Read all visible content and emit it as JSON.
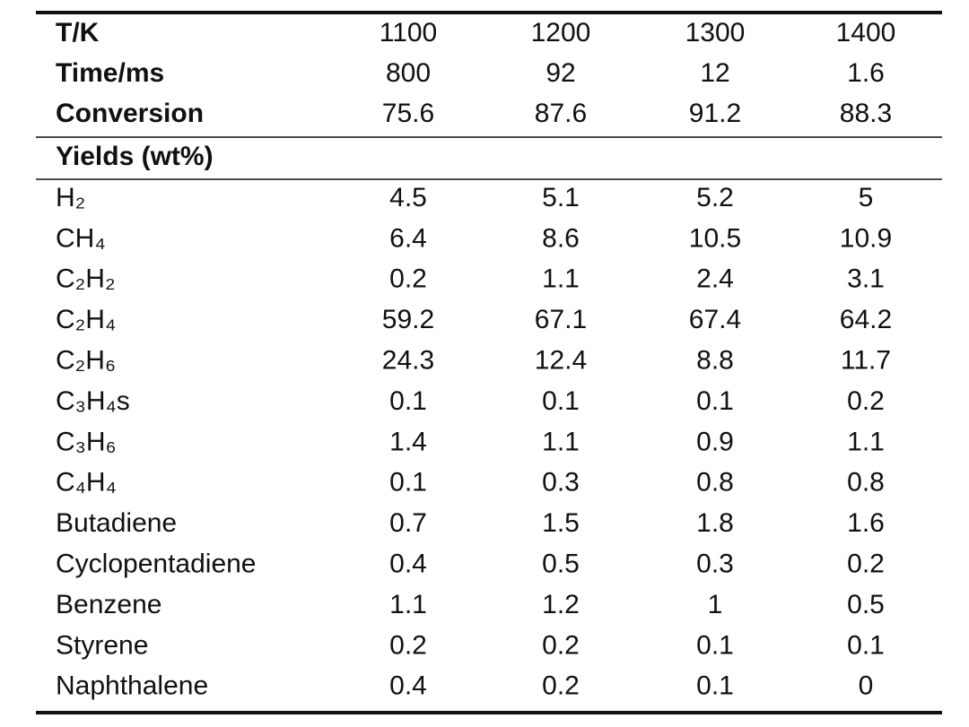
{
  "table": {
    "header_rows": [
      {
        "label": "T/K",
        "values": [
          1100,
          1200,
          1300,
          1400
        ]
      },
      {
        "label": "Time/ms",
        "values": [
          800,
          92,
          12,
          1.6
        ]
      },
      {
        "label": "Conversion",
        "values": [
          75.6,
          87.6,
          91.2,
          88.3
        ]
      }
    ],
    "section": "Yields (wt%)",
    "rows": [
      {
        "label": "H₂",
        "values": [
          4.5,
          5.1,
          5.2,
          5
        ]
      },
      {
        "label": "CH₄",
        "values": [
          6.4,
          8.6,
          10.5,
          10.9
        ]
      },
      {
        "label": "C₂H₂",
        "values": [
          0.2,
          1.1,
          2.4,
          3.1
        ]
      },
      {
        "label": "C₂H₄",
        "values": [
          59.2,
          67.1,
          67.4,
          64.2
        ]
      },
      {
        "label": "C₂H₆",
        "values": [
          24.3,
          12.4,
          8.8,
          11.7
        ]
      },
      {
        "label": "C₃H₄s",
        "values": [
          0.1,
          0.1,
          0.1,
          0.2
        ]
      },
      {
        "label": "C₃H₆",
        "values": [
          1.4,
          1.1,
          0.9,
          1.1
        ]
      },
      {
        "label": "C₄H₄",
        "values": [
          0.1,
          0.3,
          0.8,
          0.8
        ]
      },
      {
        "label": "Butadiene",
        "values": [
          0.7,
          1.5,
          1.8,
          1.6
        ]
      },
      {
        "label": "Cyclopentadiene",
        "values": [
          0.4,
          0.5,
          0.3,
          0.2
        ]
      },
      {
        "label": "Benzene",
        "values": [
          1.1,
          1.2,
          1,
          0.5
        ]
      },
      {
        "label": "Styrene",
        "values": [
          0.2,
          0.2,
          0.1,
          0.1
        ]
      },
      {
        "label": "Naphthalene",
        "values": [
          0.4,
          0.2,
          0.1,
          0
        ]
      }
    ]
  }
}
